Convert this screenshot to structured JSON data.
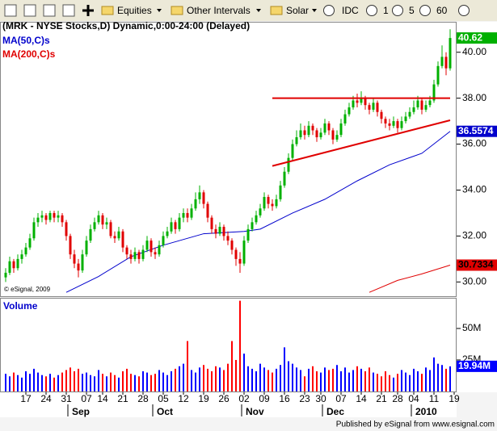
{
  "toolbar": {
    "items": [
      "Equities",
      "Other Intervals",
      "Solar",
      "IDC",
      "1",
      "5",
      "60"
    ]
  },
  "footer": "Published by eSignal from www.esignal.com",
  "chart_data": [
    {
      "type": "candlestick",
      "title": "(MRK - NYSE Stocks,D) Dynamic,0:00-24:00 (Delayed)",
      "copyright": "© eSignal, 2009",
      "categories": [
        null,
        null,
        null,
        null,
        null,
        "17",
        null,
        null,
        null,
        null,
        "24",
        null,
        null,
        null,
        null,
        "31",
        null,
        null,
        null,
        null,
        "07",
        null,
        null,
        null,
        "14",
        null,
        null,
        null,
        null,
        "21",
        null,
        null,
        null,
        null,
        "28",
        null,
        null,
        null,
        null,
        "05",
        null,
        null,
        null,
        null,
        "12",
        null,
        null,
        null,
        null,
        "19",
        null,
        null,
        null,
        null,
        "26",
        null,
        null,
        null,
        null,
        "02",
        null,
        null,
        null,
        null,
        "09",
        null,
        null,
        null,
        null,
        "16",
        null,
        null,
        null,
        null,
        "23",
        null,
        null,
        null,
        "30",
        null,
        null,
        null,
        null,
        "07",
        null,
        null,
        null,
        null,
        "14",
        null,
        null,
        null,
        null,
        "21",
        null,
        null,
        null,
        "28",
        null,
        null,
        null,
        "04",
        null,
        null,
        null,
        null,
        "11",
        null,
        null,
        null,
        null,
        "19"
      ],
      "month_labels": [
        {
          "label": "Sep",
          "index": 16
        },
        {
          "label": "Oct",
          "index": 37
        },
        {
          "label": "Nov",
          "index": 59
        },
        {
          "label": "Dec",
          "index": 79
        },
        {
          "label": "2010",
          "index": 101
        }
      ],
      "open": [
        30.2,
        30.4,
        30.9,
        30.6,
        31.0,
        31.2,
        31.5,
        31.9,
        32.6,
        32.8,
        32.9,
        32.7,
        33.0,
        32.8,
        32.9,
        32.6,
        32.0,
        31.2,
        30.8,
        30.5,
        31.2,
        31.8,
        32.3,
        32.6,
        32.9,
        32.5,
        32.6,
        32.0,
        31.9,
        32.2,
        31.5,
        31.2,
        31.0,
        31.3,
        31.0,
        31.4,
        31.8,
        31.3,
        31.2,
        31.6,
        32.0,
        32.2,
        32.6,
        32.3,
        32.8,
        33.0,
        32.8,
        33.2,
        33.6,
        33.9,
        33.4,
        32.8,
        32.3,
        32.1,
        32.4,
        32.0,
        31.8,
        31.4,
        31.0,
        30.8,
        31.8,
        32.3,
        32.6,
        32.9,
        33.2,
        33.7,
        33.4,
        33.3,
        33.6,
        34.2,
        34.8,
        35.4,
        36.0,
        36.3,
        36.6,
        36.4,
        36.8,
        36.6,
        36.3,
        36.5,
        36.9,
        36.6,
        36.2,
        36.4,
        36.9,
        37.3,
        37.6,
        37.9,
        37.8,
        38.0,
        37.7,
        37.5,
        37.8,
        37.4,
        37.1,
        36.9,
        36.8,
        37.0,
        36.7,
        37.0,
        37.2,
        37.4,
        37.6,
        37.9,
        37.5,
        37.7,
        37.9,
        38.6,
        39.4,
        39.8,
        39.3,
        null
      ],
      "high": [
        30.6,
        31.1,
        31.0,
        31.2,
        31.4,
        31.7,
        32.1,
        32.8,
        33.0,
        33.1,
        33.0,
        33.1,
        33.1,
        33.1,
        33.0,
        32.7,
        32.1,
        31.4,
        31.0,
        31.4,
        32.0,
        32.5,
        32.8,
        33.1,
        33.0,
        32.8,
        32.7,
        32.2,
        32.4,
        32.3,
        31.6,
        31.4,
        31.5,
        31.4,
        31.6,
        32.0,
        31.9,
        31.5,
        31.8,
        32.2,
        32.4,
        32.8,
        32.7,
        33.0,
        33.2,
        33.2,
        33.4,
        33.9,
        34.2,
        34.0,
        33.5,
        32.9,
        32.5,
        32.6,
        32.5,
        32.2,
        31.9,
        31.5,
        31.3,
        32.0,
        32.5,
        32.8,
        33.1,
        33.4,
        33.9,
        33.8,
        33.6,
        33.8,
        34.4,
        35.0,
        35.6,
        36.2,
        36.6,
        36.9,
        36.8,
        37.0,
        36.9,
        36.7,
        36.7,
        37.1,
        37.0,
        36.7,
        36.6,
        37.1,
        37.5,
        37.8,
        38.1,
        38.2,
        38.3,
        38.1,
        37.8,
        38.0,
        37.9,
        37.5,
        37.2,
        37.1,
        37.2,
        37.1,
        37.2,
        37.4,
        37.6,
        37.9,
        38.1,
        38.0,
        37.9,
        38.1,
        38.8,
        39.6,
        40.3,
        40.0,
        41.0,
        null
      ],
      "low": [
        30.0,
        30.3,
        30.4,
        30.5,
        30.8,
        31.1,
        31.4,
        31.8,
        32.4,
        32.6,
        32.5,
        32.6,
        32.6,
        32.6,
        32.4,
        31.8,
        31.0,
        30.6,
        30.2,
        30.4,
        31.1,
        31.7,
        32.2,
        32.5,
        32.3,
        32.3,
        31.9,
        31.7,
        31.8,
        31.3,
        31.0,
        30.8,
        30.9,
        30.8,
        30.9,
        31.3,
        31.1,
        31.0,
        31.1,
        31.5,
        31.9,
        32.1,
        32.1,
        32.2,
        32.6,
        32.6,
        32.7,
        33.1,
        33.4,
        33.2,
        32.6,
        32.1,
        31.9,
        32.0,
        31.8,
        31.6,
        31.2,
        30.7,
        30.4,
        30.7,
        31.7,
        32.2,
        32.5,
        32.8,
        33.1,
        33.2,
        33.1,
        33.2,
        33.5,
        34.1,
        34.7,
        35.3,
        35.9,
        36.2,
        36.2,
        36.3,
        36.4,
        36.1,
        36.2,
        36.4,
        36.4,
        36.0,
        36.1,
        36.3,
        36.8,
        37.2,
        37.5,
        37.6,
        37.7,
        37.5,
        37.3,
        37.4,
        37.2,
        36.9,
        36.7,
        36.6,
        36.7,
        36.5,
        36.6,
        36.9,
        37.1,
        37.3,
        37.5,
        37.3,
        37.4,
        37.6,
        37.8,
        38.5,
        39.3,
        39.0,
        39.2,
        null
      ],
      "close": [
        30.4,
        30.9,
        30.6,
        31.0,
        31.2,
        31.5,
        31.9,
        32.6,
        32.8,
        32.9,
        32.7,
        33.0,
        32.8,
        32.9,
        32.6,
        32.0,
        31.2,
        30.8,
        30.5,
        31.2,
        31.8,
        32.3,
        32.6,
        32.9,
        32.5,
        32.6,
        32.0,
        31.9,
        32.2,
        31.5,
        31.2,
        31.0,
        31.3,
        31.0,
        31.4,
        31.8,
        31.3,
        31.2,
        31.6,
        32.0,
        32.2,
        32.6,
        32.3,
        32.8,
        33.0,
        32.8,
        33.2,
        33.6,
        33.9,
        33.4,
        32.8,
        32.3,
        32.1,
        32.4,
        32.0,
        31.8,
        31.4,
        31.0,
        30.8,
        31.8,
        32.3,
        32.6,
        32.9,
        33.2,
        33.7,
        33.4,
        33.3,
        33.6,
        34.2,
        34.8,
        35.4,
        36.0,
        36.3,
        36.6,
        36.4,
        36.8,
        36.6,
        36.3,
        36.5,
        36.9,
        36.6,
        36.2,
        36.4,
        36.9,
        37.3,
        37.6,
        37.9,
        37.8,
        38.0,
        37.7,
        37.5,
        37.8,
        37.4,
        37.1,
        36.9,
        36.8,
        37.0,
        36.7,
        37.0,
        37.2,
        37.4,
        37.6,
        37.9,
        37.5,
        37.7,
        37.9,
        38.6,
        39.4,
        39.8,
        39.3,
        40.62,
        null
      ],
      "up_color": "#00b000",
      "down_color": "#e00000",
      "lines": [
        {
          "name": "MA(50,C)s",
          "color": "#0000cc",
          "x": [
            15,
            23,
            31,
            39,
            49,
            59,
            63,
            71,
            79,
            87,
            95,
            103,
            110
          ],
          "values": [
            29.55,
            30.24,
            31.1,
            31.6,
            32.1,
            32.2,
            32.3,
            33.0,
            33.6,
            34.4,
            35.1,
            35.6,
            36.5574
          ]
        },
        {
          "name": "MA(200,C)s",
          "color": "#e00000",
          "x": [
            90,
            97,
            103,
            110
          ],
          "values": [
            29.55,
            30.07,
            30.35,
            30.7334
          ]
        }
      ],
      "trendlines": [
        {
          "color": "#e00000",
          "x": [
            66,
            110
          ],
          "values": [
            38.0,
            38.0
          ]
        },
        {
          "color": "#e00000",
          "x": [
            66,
            110
          ],
          "values": [
            35.05,
            37.04
          ]
        }
      ],
      "ylim": [
        29.45,
        41.15
      ],
      "yticks": [
        {
          "value": 30,
          "label": "30.00"
        },
        {
          "value": 32,
          "label": "32.00"
        },
        {
          "value": 34,
          "label": "34.00"
        },
        {
          "value": 36,
          "label": "36.00"
        },
        {
          "value": 38,
          "label": "38.00"
        },
        {
          "value": 40,
          "label": "40.00"
        }
      ]
    },
    {
      "type": "bar",
      "title": "Volume",
      "values": [
        14,
        12,
        15,
        13,
        11,
        16,
        14,
        18,
        15,
        13,
        12,
        14,
        11,
        13,
        15,
        17,
        19,
        16,
        18,
        14,
        15,
        13,
        12,
        17,
        14,
        12,
        15,
        13,
        11,
        16,
        18,
        14,
        13,
        12,
        16,
        15,
        13,
        14,
        17,
        15,
        13,
        16,
        18,
        20,
        22,
        40,
        17,
        15,
        19,
        21,
        18,
        16,
        20,
        19,
        17,
        22,
        40,
        25,
        72,
        30,
        20,
        18,
        16,
        22,
        19,
        17,
        15,
        18,
        21,
        35,
        24,
        22,
        19,
        17,
        12,
        18,
        20,
        16,
        15,
        19,
        17,
        18,
        21,
        16,
        19,
        15,
        17,
        20,
        18,
        16,
        19,
        15,
        14,
        12,
        16,
        13,
        11,
        14,
        17,
        15,
        13,
        18,
        16,
        14,
        19,
        17,
        27,
        22,
        21,
        18,
        19.94,
        null
      ],
      "value_labels": [
        null,
        null,
        null,
        null,
        null,
        null,
        null,
        null,
        null,
        null,
        null,
        null,
        null,
        null,
        null,
        null,
        null,
        null,
        null,
        null,
        null,
        null,
        null,
        null,
        null,
        null,
        null,
        null,
        null,
        null,
        null,
        null,
        null,
        null,
        null,
        null,
        null,
        null,
        null,
        null,
        null,
        null,
        null,
        null,
        null,
        null,
        null,
        null,
        null,
        null,
        null,
        null,
        null,
        null,
        null,
        null,
        null,
        null,
        null,
        null,
        null,
        null,
        null,
        null,
        null,
        null,
        null,
        null,
        null,
        null,
        null,
        null,
        null,
        null,
        null,
        null,
        null,
        null,
        null,
        null,
        null,
        null,
        null,
        null,
        null,
        null,
        null,
        null,
        null,
        null,
        null,
        null,
        null,
        null,
        null,
        null,
        null,
        null,
        null,
        null,
        null,
        null,
        null,
        null,
        null,
        null,
        null,
        null,
        null,
        null,
        "19.94M",
        null
      ],
      "up_color": "#0000ff",
      "down_color": "#ff0000",
      "ylim": [
        0,
        72.4
      ],
      "yticks": [
        {
          "value": 25,
          "label": "25M"
        },
        {
          "value": 50,
          "label": "50M"
        }
      ]
    }
  ]
}
